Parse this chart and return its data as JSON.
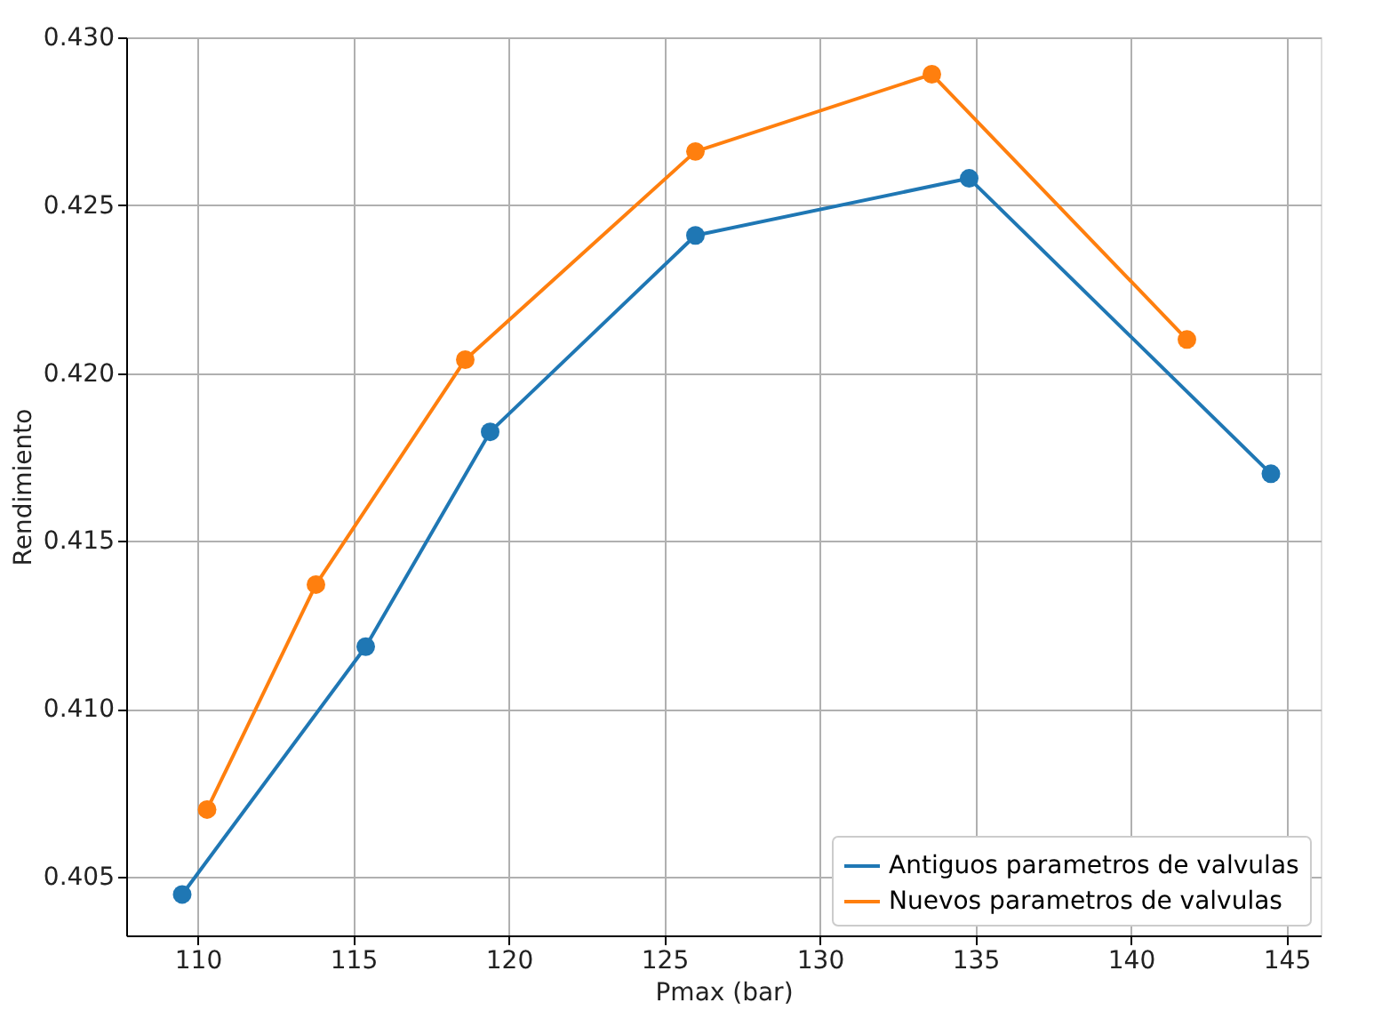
{
  "chart_data": {
    "type": "line",
    "xlabel": "Pmax (bar)",
    "ylabel": "Rendimiento",
    "xlim": [
      107.7,
      146.1
    ],
    "xticks": [
      110,
      115,
      120,
      125,
      130,
      135,
      140,
      145
    ],
    "ylim": [
      0.40325,
      0.43
    ],
    "yticks": [
      0.405,
      {
        "value": 0.41,
        "label": "0.410"
      },
      0.415,
      {
        "value": 0.42,
        "label": "0.420"
      },
      0.425,
      {
        "value": 0.43,
        "label": "0.430"
      }
    ],
    "grid": true,
    "legend": "bottom right",
    "marker": "circle",
    "line_style": "solid",
    "series": [
      {
        "name": "Antiguos parametros de valvulas",
        "color": "#1f77b4",
        "x": [
          109.5,
          115.4,
          119.4,
          126.0,
          134.8,
          144.5
        ],
        "values": [
          0.40447,
          0.41185,
          0.41825,
          0.4241,
          0.4258,
          0.417
        ]
      },
      {
        "name": "Nuevos parametros de valvulas",
        "color": "#ff7f0e",
        "x": [
          110.3,
          113.8,
          118.6,
          126.0,
          133.6,
          141.8
        ],
        "values": [
          0.407,
          0.4137,
          0.4204,
          0.4266,
          0.4289,
          0.421
        ]
      }
    ]
  }
}
